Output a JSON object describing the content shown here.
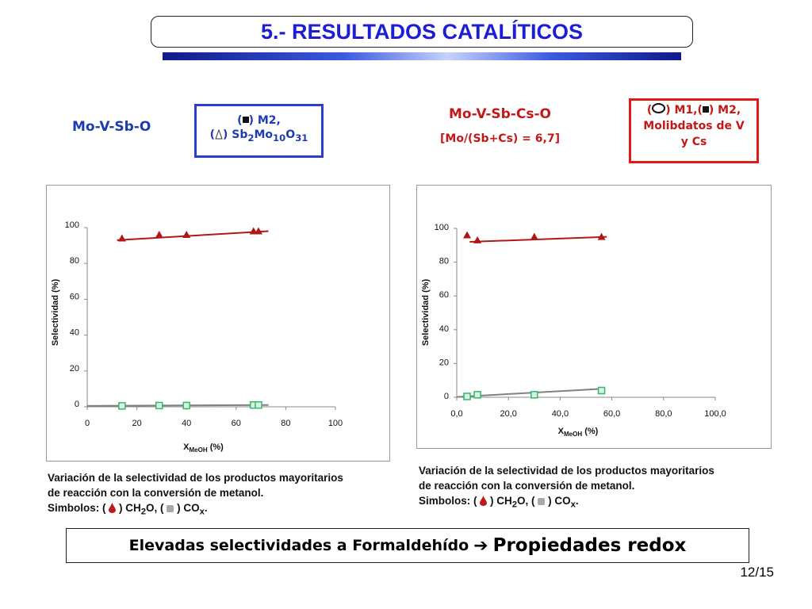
{
  "header": {
    "title": "5.- RESULTADOS CATALÍTICOS"
  },
  "left": {
    "system": "Mo-V-Sb-O",
    "legend_line1": ") M2,",
    "legend_line2_pre": ") Sb",
    "legend_sub1": "2",
    "legend_mo": "Mo",
    "legend_sub2": "10",
    "legend_o": "O",
    "legend_sub3": "31",
    "caption_line1": "Variación de la selectividad de los productos mayoritarios",
    "caption_line2": "de reacción con la conversión de metanol.",
    "symbols_label": "Simbolos: (",
    "symbols_mid": ") CH",
    "symbols_sub": "2",
    "symbols_mid2": "O, (",
    "symbols_end": ") CO",
    "symbols_subx": "x",
    "symbols_dot": "."
  },
  "right": {
    "system": "Mo-V-Sb-Cs-O",
    "ratio": "[Mo/(Sb+Cs) = 6,7]",
    "legend_line1a": ") M1,(",
    "legend_line1b": ") M2,",
    "legend_line2": "Molibdatos de V",
    "legend_line3": "y Cs",
    "caption_line1": "Variación de la selectividad de los productos mayoritarios",
    "caption_line2": "de reacción con la conversión de metanol.",
    "symbols_label": "Simbolos: (",
    "symbols_mid": ") CH",
    "symbols_sub": "2",
    "symbols_mid2": "O, (",
    "symbols_end": ") CO",
    "symbols_subx": "x",
    "symbols_dot": "."
  },
  "conclusion": {
    "part1": "Elevadas selectividades a Formaldehído",
    "arrow": "➔",
    "part2": "Propiedades redox"
  },
  "page": "12/15",
  "colors": {
    "title_blue": "#1d1dd6",
    "ch2o_red": "#b01818",
    "cox_green": "#35b86a",
    "cox_line": "#808080"
  },
  "chart_data": [
    {
      "type": "scatter",
      "xlabel": "X",
      "xlabel_sub": "MeOH",
      "xlabel_unit": " (%)",
      "ylabel": "Selectividad (%)",
      "xlim": [
        0,
        100
      ],
      "ylim": [
        0,
        100
      ],
      "x_ticks": [
        "0",
        "20",
        "40",
        "60",
        "80",
        "100"
      ],
      "y_ticks": [
        "0",
        "20",
        "40",
        "60",
        "80",
        "100"
      ],
      "series": [
        {
          "marker": "triangle",
          "color": "#b01818",
          "points": [
            [
              14,
              94
            ],
            [
              29,
              96
            ],
            [
              40,
              96
            ],
            [
              67,
              98
            ],
            [
              69,
              98
            ]
          ],
          "trend": [
            [
              12,
              93
            ],
            [
              73,
              98
            ]
          ]
        },
        {
          "marker": "square",
          "color": "#35b86a",
          "points": [
            [
              14,
              0.5
            ],
            [
              29,
              0.7
            ],
            [
              40,
              0.7
            ],
            [
              67,
              1
            ],
            [
              69,
              1
            ]
          ],
          "trend": [
            [
              0,
              0.5
            ],
            [
              73,
              1
            ]
          ]
        }
      ]
    },
    {
      "type": "scatter",
      "xlabel": "X",
      "xlabel_sub": "MeOH",
      "xlabel_unit": " (%)",
      "ylabel": "Selectividad (%)",
      "xlim": [
        0,
        100
      ],
      "ylim": [
        0,
        100
      ],
      "x_ticks": [
        "0,0",
        "20,0",
        "40,0",
        "60,0",
        "80,0",
        "100,0"
      ],
      "y_ticks": [
        "0",
        "20",
        "40",
        "60",
        "80",
        "100"
      ],
      "series": [
        {
          "marker": "triangle",
          "color": "#b01818",
          "points": [
            [
              4,
              96
            ],
            [
              8,
              93
            ],
            [
              30,
              95
            ],
            [
              56,
              95
            ]
          ],
          "trend": [
            [
              5,
              92
            ],
            [
              58,
              95
            ]
          ]
        },
        {
          "marker": "square",
          "color": "#35b86a",
          "points": [
            [
              4,
              0.5
            ],
            [
              8,
              1.5
            ],
            [
              30,
              1.5
            ],
            [
              56,
              4
            ]
          ],
          "trend": [
            [
              0,
              0.2
            ],
            [
              56,
              5
            ]
          ]
        }
      ]
    }
  ]
}
